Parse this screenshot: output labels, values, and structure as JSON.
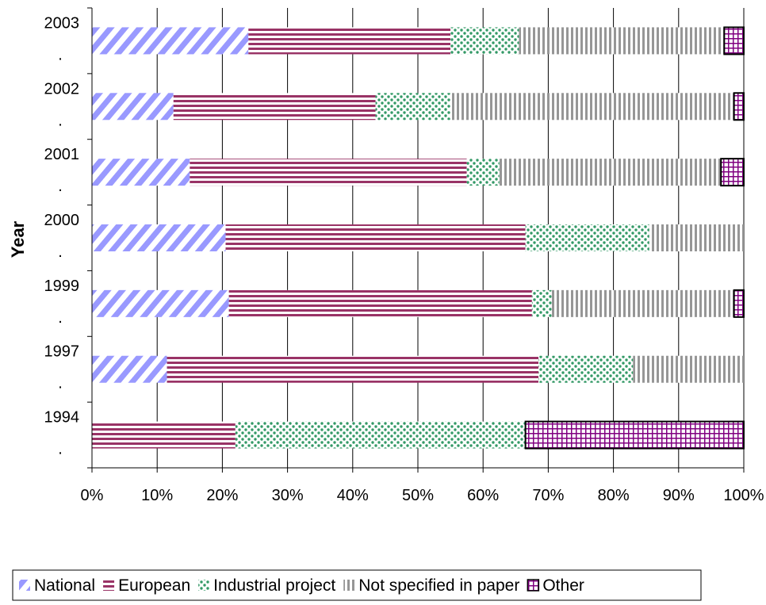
{
  "chart_data": {
    "type": "bar",
    "orientation": "horizontal",
    "stacked": "100%",
    "ylabel": "Year",
    "xlabel": "",
    "categories": [
      "2003",
      "2002",
      "2001",
      "2000",
      "1999",
      "1997",
      "1994"
    ],
    "category_suffix": ".",
    "x_ticks": [
      "0%",
      "10%",
      "20%",
      "30%",
      "40%",
      "50%",
      "60%",
      "70%",
      "80%",
      "90%",
      "100%"
    ],
    "xlim": [
      0,
      100
    ],
    "grid": "vertical",
    "legend_position": "bottom",
    "series": [
      {
        "name": "National",
        "color": "#9999ff",
        "pattern": "diagonal",
        "values": [
          24,
          12.5,
          15,
          20.5,
          21,
          11.5,
          0
        ]
      },
      {
        "name": "European",
        "color": "#993366",
        "pattern": "horizontal",
        "values": [
          31,
          31,
          42.5,
          46,
          46.5,
          57,
          22
        ]
      },
      {
        "name": "Industrial project",
        "color": "#339966",
        "pattern": "dots",
        "values": [
          10.5,
          11.5,
          5,
          19,
          3,
          14.5,
          44.5
        ]
      },
      {
        "name": "Not specified in paper",
        "color": "#969696",
        "pattern": "vertical",
        "values": [
          31.5,
          43.5,
          34,
          14.5,
          28,
          17,
          0
        ]
      },
      {
        "name": "Other",
        "color": "#800080",
        "pattern": "grid",
        "values": [
          3,
          1.5,
          3.5,
          0,
          1.5,
          0,
          33.5
        ]
      }
    ]
  }
}
